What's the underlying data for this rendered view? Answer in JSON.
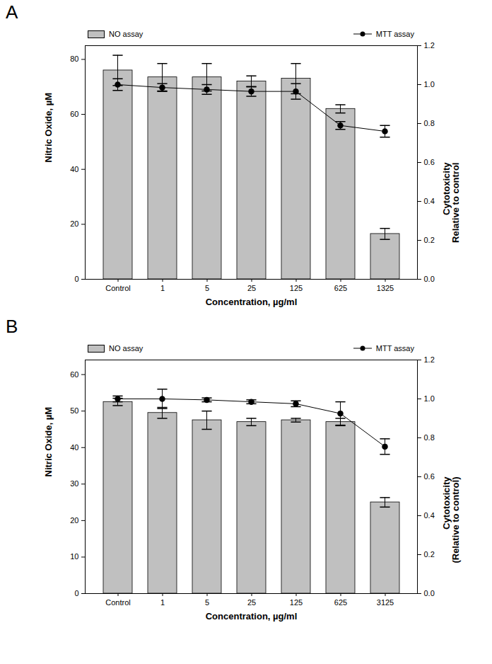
{
  "chart_data": [
    {
      "type": "bar",
      "title": "A",
      "x_label": "Concentration, µg/ml",
      "y_label": "Nitric Oxide, µM",
      "y2_label": "Cytotoxicity\nRelative to control",
      "categories": [
        "Control",
        "1",
        "5",
        "25",
        "125",
        "625",
        "1325"
      ],
      "series": [
        {
          "name": "NO assay",
          "type": "bar",
          "color": "#c0c0c0",
          "values": [
            76,
            73.5,
            73.5,
            72,
            73,
            62,
            16.5
          ],
          "errors": [
            5.5,
            5,
            5,
            2,
            5.5,
            1.5,
            2
          ]
        },
        {
          "name": "MTT assay",
          "type": "line",
          "axis": "y2",
          "color": "#000000",
          "marker": "circle",
          "values": [
            1.0,
            0.985,
            0.975,
            0.965,
            0.965,
            0.79,
            0.76
          ],
          "errors": [
            0.03,
            0.02,
            0.025,
            0.025,
            0.04,
            0.02,
            0.03
          ]
        }
      ],
      "ylim": [
        0,
        85
      ],
      "yticks": [
        0,
        20,
        40,
        60,
        80
      ],
      "y2lim": [
        0,
        1.2
      ],
      "y2ticks": [
        {
          "value": 0,
          "label": "0.0"
        },
        {
          "value": 0.2,
          "label": "0.2"
        },
        {
          "value": 0.4,
          "label": "0.4"
        },
        {
          "value": 0.6,
          "label": "0.6"
        },
        {
          "value": 0.8,
          "label": "0.8"
        },
        {
          "value": 1,
          "label": "1.0"
        },
        {
          "value": 1.2,
          "label": "1.2"
        }
      ],
      "legend": "top"
    },
    {
      "type": "bar",
      "title": "B",
      "x_label": "Concentration, µg/ml",
      "y_label": "Nitric Oxide, µM",
      "y2_label": "Cytotoxicity\n(Relative to control)",
      "categories": [
        "Control",
        "1",
        "5",
        "25",
        "125",
        "625",
        "3125"
      ],
      "series": [
        {
          "name": "NO assay",
          "type": "bar",
          "color": "#c0c0c0",
          "values": [
            52.5,
            49.5,
            47.5,
            47,
            47.5,
            47,
            25
          ],
          "errors": [
            1,
            1.5,
            2.5,
            1,
            0.5,
            1,
            1.3
          ]
        },
        {
          "name": "MTT assay",
          "type": "line",
          "axis": "y2",
          "color": "#000000",
          "marker": "circle",
          "values": [
            1.0,
            1.0,
            0.995,
            0.985,
            0.975,
            0.925,
            0.755
          ],
          "errors": [
            0.015,
            0.05,
            0.01,
            0.01,
            0.015,
            0.06,
            0.04
          ]
        }
      ],
      "ylim": [
        0,
        64
      ],
      "yticks": [
        0,
        10,
        20,
        30,
        40,
        50,
        60
      ],
      "y2lim": [
        0,
        1.2
      ],
      "y2ticks": [
        {
          "value": 0,
          "label": "0.0"
        },
        {
          "value": 0.2,
          "label": "0.2"
        },
        {
          "value": 0.4,
          "label": "0.4"
        },
        {
          "value": 0.6,
          "label": "0.6"
        },
        {
          "value": 0.8,
          "label": "0.8"
        },
        {
          "value": 1,
          "label": "1.0"
        },
        {
          "value": 1.2,
          "label": "1.2"
        }
      ],
      "legend": "top"
    }
  ]
}
